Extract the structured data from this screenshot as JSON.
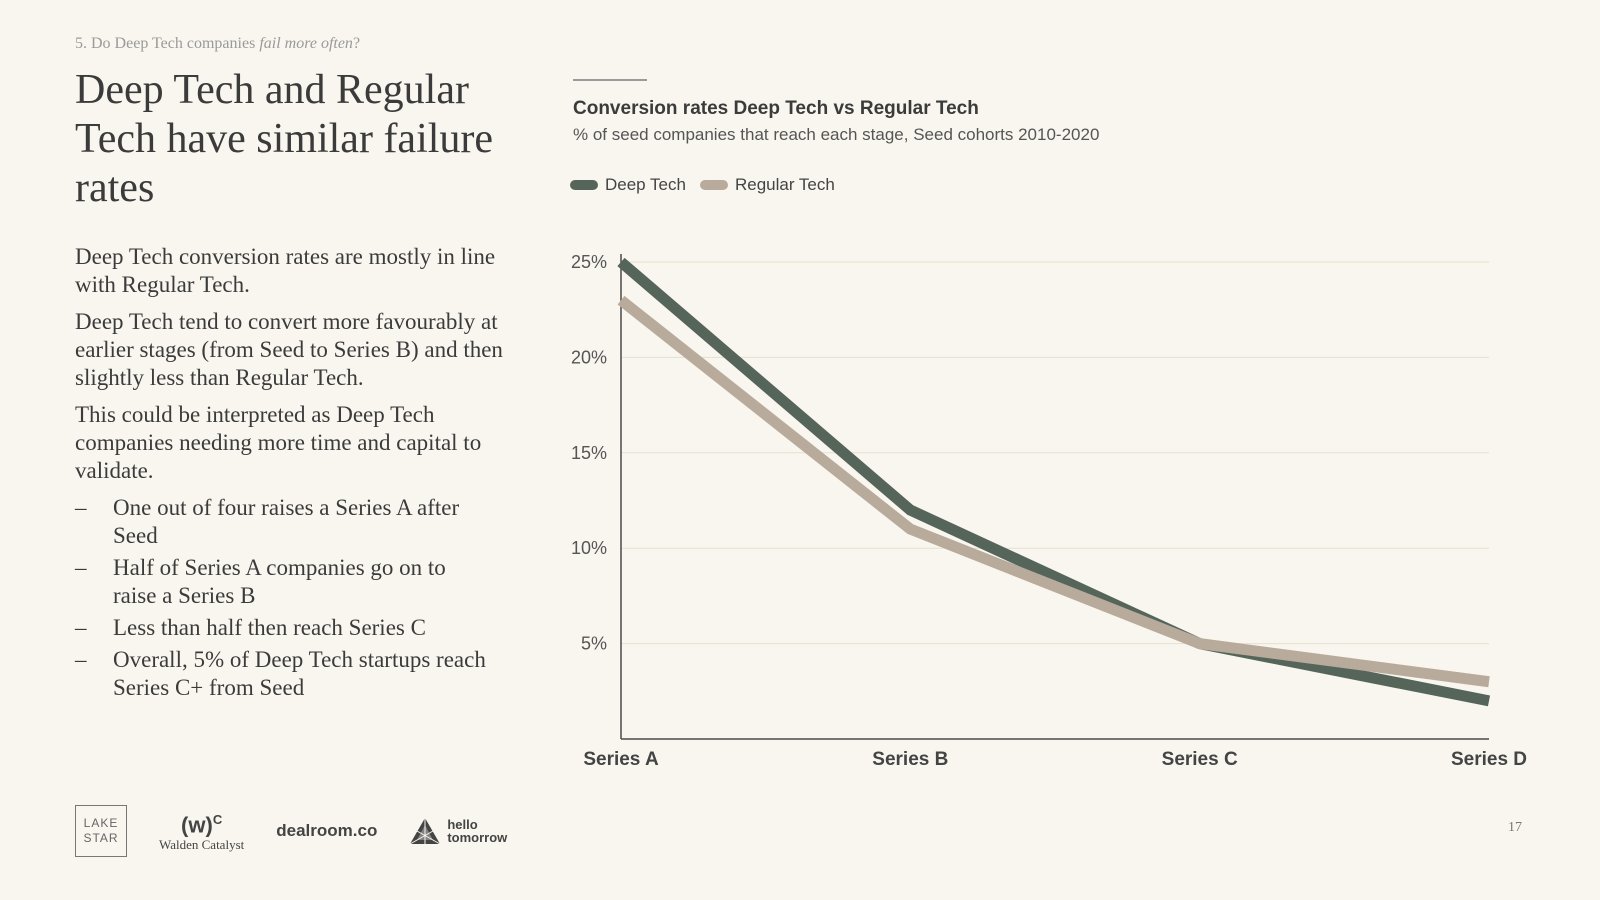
{
  "header": {
    "breadcrumb_prefix": "5. Do Deep Tech companies",
    "breadcrumb_emphasis": "fail more often",
    "breadcrumb_suffix": "?",
    "title": "Deep Tech and Regular Tech have similar failure rates"
  },
  "body": {
    "paragraphs": [
      "Deep Tech conversion rates are mostly in line with Regular Tech.",
      "Deep Tech tend to convert more favourably at earlier stages (from Seed to Series B) and then slightly less than Regular Tech.",
      "This could be interpreted as Deep Tech companies needing more time and capital to validate."
    ],
    "bullet_marker": "–",
    "bullets": [
      "One out of four raises a Series A after Seed",
      "Half of Series A companies go on to raise a Series B",
      "Less than half then reach Series C",
      "Overall, 5% of Deep Tech startups reach Series C+ from Seed"
    ]
  },
  "chart_data": {
    "type": "line",
    "title": "Conversion rates Deep Tech vs Regular Tech",
    "subtitle": "% of seed companies that reach each stage, Seed cohorts 2010-2020",
    "categories": [
      "Series A",
      "Series B",
      "Series C",
      "Series D"
    ],
    "series": [
      {
        "name": "Deep Tech",
        "values": [
          25,
          12,
          5,
          2
        ],
        "color": "#56655a"
      },
      {
        "name": "Regular Tech",
        "values": [
          23,
          11,
          5,
          3
        ],
        "color": "#b9ab9c"
      }
    ],
    "y_ticks": [
      {
        "value": 25,
        "label": "25%"
      },
      {
        "value": 20,
        "label": "20%"
      },
      {
        "value": 15,
        "label": "15%"
      },
      {
        "value": 10,
        "label": "10%"
      },
      {
        "value": 5,
        "label": "5%"
      }
    ],
    "ylim": [
      0,
      25
    ],
    "grid": true,
    "legend_position": "top-left"
  },
  "footer": {
    "logo_lakestar_line1": "LAKE",
    "logo_lakestar_line2": "STAR",
    "logo_walden_mark": "(w)",
    "logo_walden_sup": "C",
    "logo_walden_name": "Walden Catalyst",
    "logo_dealroom": "dealroom.co",
    "logo_hello_line1": "hello",
    "logo_hello_line2": "tomorrow",
    "page_number": "17"
  }
}
